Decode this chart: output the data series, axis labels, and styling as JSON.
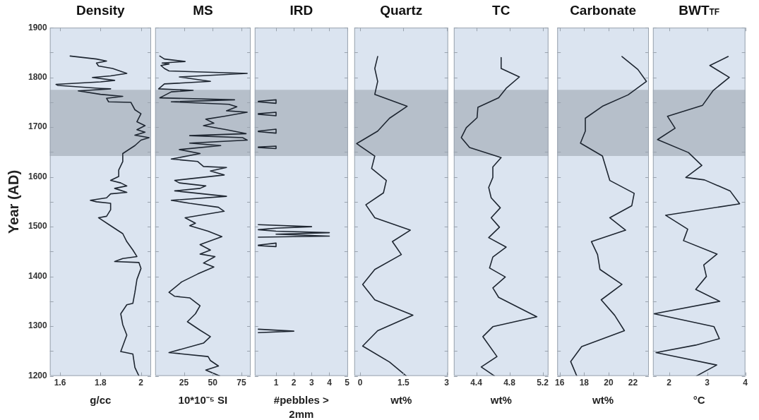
{
  "chart_data": [
    {
      "type": "line",
      "title": "Density",
      "xlabel": "g/cc",
      "ylabel": "Year (AD)",
      "orientation": "horizontal",
      "marker": "none",
      "xlim": [
        1.55,
        2.05
      ],
      "xticks": [
        1.6,
        1.8,
        2
      ],
      "ylim": [
        1200,
        1900
      ],
      "yticks": [
        1200,
        {
          "value": 1250,
          "label": null
        },
        1300,
        {
          "value": 1350,
          "label": null
        },
        1400,
        {
          "value": 1450,
          "label": null
        },
        1500,
        {
          "value": 1550,
          "label": null
        },
        1600,
        {
          "value": 1650,
          "label": null
        },
        1700,
        {
          "value": 1750,
          "label": null
        },
        1800,
        {
          "value": 1850,
          "label": null
        },
        1900
      ],
      "bands": [
        {
          "axis": "y",
          "from": 1642,
          "to": 1775,
          "color": "#b6bfca"
        }
      ],
      "series": [
        {
          "color": "#1e2631",
          "x": [
            1843,
            1837,
            1833,
            1829,
            1823,
            1818,
            1808,
            1803,
            1800,
            1794,
            1791,
            1786,
            1784,
            1778,
            1777,
            1773,
            1766,
            1762,
            1758,
            1751,
            1750,
            1735,
            1727,
            1711,
            1703,
            1695,
            1690,
            1684,
            1679,
            1674,
            1663,
            1647,
            1631,
            1614,
            1601,
            1593,
            1588,
            1582,
            1577,
            1569,
            1566,
            1558,
            1553,
            1550,
            1547,
            1534,
            1521,
            1518,
            1502,
            1486,
            1470,
            1453,
            1440,
            1436,
            1430,
            1428,
            1416,
            1394,
            1368,
            1346,
            1343,
            1325,
            1303,
            1282,
            1260,
            1249,
            1244,
            1217,
            1200
          ],
          "values": [
            1.65,
            1.78,
            1.83,
            1.78,
            1.79,
            1.86,
            1.93,
            1.85,
            1.76,
            1.87,
            1.8,
            1.58,
            1.59,
            1.8,
            1.85,
            1.69,
            1.8,
            1.91,
            1.83,
            1.84,
            1.95,
            1.97,
            2.0,
            1.98,
            2.02,
            1.98,
            2.02,
            1.97,
            2.04,
            2.0,
            1.97,
            1.91,
            1.91,
            1.89,
            1.89,
            1.85,
            1.9,
            1.93,
            1.87,
            1.93,
            1.85,
            1.83,
            1.75,
            1.78,
            1.85,
            1.85,
            1.83,
            1.79,
            1.85,
            1.91,
            1.93,
            1.96,
            1.98,
            1.91,
            1.87,
            1.99,
            2.0,
            1.98,
            1.97,
            1.96,
            1.93,
            1.9,
            1.91,
            1.93,
            1.91,
            1.9,
            1.96,
            1.97,
            1.99
          ]
        }
      ]
    },
    {
      "type": "line",
      "title": "MS",
      "xlabel": "10*10⁻⁵ SI",
      "orientation": "horizontal",
      "marker": "none",
      "tick_labels": "x",
      "xlim": [
        0,
        83
      ],
      "xticks": [
        25,
        50,
        75
      ],
      "ylim": [
        1200,
        1900
      ],
      "yticks": [
        1200,
        1250,
        1300,
        1350,
        1400,
        1450,
        1500,
        1550,
        1600,
        1650,
        1700,
        1750,
        1800,
        1850,
        1900
      ],
      "bands": [
        {
          "axis": "y",
          "from": 1642,
          "to": 1775,
          "color": "#b6bfca"
        }
      ],
      "series": [
        {
          "color": "#1e2631",
          "x": [
            1843,
            1837,
            1832,
            1829,
            1827,
            1824,
            1818,
            1813,
            1808,
            1801,
            1792,
            1787,
            1777,
            1774,
            1771,
            1759,
            1755,
            1751,
            1746,
            1741,
            1733,
            1730,
            1722,
            1716,
            1708,
            1703,
            1695,
            1687,
            1683,
            1679,
            1674,
            1668,
            1663,
            1655,
            1647,
            1636,
            1631,
            1621,
            1619,
            1612,
            1604,
            1593,
            1588,
            1582,
            1577,
            1572,
            1561,
            1553,
            1547,
            1539,
            1531,
            1518,
            1507,
            1502,
            1491,
            1480,
            1464,
            1453,
            1445,
            1440,
            1427,
            1419,
            1405,
            1389,
            1368,
            1360,
            1357,
            1341,
            1325,
            1309,
            1292,
            1279,
            1266,
            1247,
            1239,
            1231,
            1220,
            1212,
            1200
          ],
          "values": [
            4,
            8,
            26,
            6,
            12,
            5,
            8,
            12,
            80,
            21,
            48,
            8,
            3,
            33,
            14,
            4,
            69,
            14,
            64,
            71,
            62,
            80,
            60,
            44,
            51,
            42,
            62,
            79,
            30,
            76,
            80,
            30,
            57,
            21,
            39,
            14,
            37,
            42,
            62,
            48,
            60,
            17,
            21,
            44,
            39,
            17,
            62,
            14,
            30,
            55,
            60,
            26,
            35,
            30,
            46,
            58,
            39,
            48,
            39,
            52,
            42,
            51,
            37,
            23,
            12,
            17,
            30,
            39,
            35,
            28,
            39,
            48,
            42,
            12,
            46,
            48,
            55,
            44,
            56
          ]
        }
      ]
    },
    {
      "type": "line",
      "title": "IRD",
      "xlabel": "#pebbles > 2mm",
      "orientation": "horizontal",
      "marker": "none",
      "tick_labels": "x",
      "xlim": [
        -0.2,
        5.05
      ],
      "xticks": [
        1,
        2,
        3,
        4,
        5
      ],
      "ylim": [
        1200,
        1900
      ],
      "yticks": [
        1200,
        1250,
        1300,
        1350,
        1400,
        1450,
        1500,
        1550,
        1600,
        1650,
        1700,
        1750,
        1800,
        1850,
        1900
      ],
      "bands": [
        {
          "axis": "y",
          "from": 1642,
          "to": 1775,
          "color": "#b6bfca"
        }
      ],
      "series": [
        {
          "color": "#1e2631",
          "x": [
            1752,
            1755,
            1748,
            1751,
            1740,
            1727,
            1730,
            1723,
            1726,
            1710,
            1692,
            1696,
            1688,
            1691,
            1675,
            1660,
            1662,
            1657,
            1659,
            1550,
            1504,
            1500,
            1497,
            1494,
            1491,
            1488,
            1485,
            1481,
            1479,
            1475,
            1463,
            1467,
            1460,
            1462,
            1380,
            1294,
            1290,
            1287
          ],
          "values": [
            0,
            1,
            1,
            0,
            null,
            0,
            1,
            1,
            0,
            null,
            0,
            1,
            1,
            0,
            null,
            0,
            1,
            1,
            0,
            null,
            0,
            3,
            1,
            0,
            1,
            4,
            1,
            4,
            0,
            null,
            0,
            1,
            1,
            0,
            null,
            0,
            2,
            0
          ]
        }
      ]
    },
    {
      "type": "line",
      "title": "Quartz",
      "xlabel": "wt%",
      "orientation": "horizontal",
      "marker": "none",
      "tick_labels": "x",
      "xlim": [
        -0.2,
        3.05
      ],
      "xticks": [
        0,
        1.5,
        3
      ],
      "ylim": [
        1200,
        1900
      ],
      "yticks": [
        1200,
        1250,
        1300,
        1350,
        1400,
        1450,
        1500,
        1550,
        1600,
        1650,
        1700,
        1750,
        1800,
        1850,
        1900
      ],
      "bands": [
        {
          "axis": "y",
          "from": 1642,
          "to": 1775,
          "color": "#b6bfca"
        }
      ],
      "series": [
        {
          "color": "#1e2631",
          "x": [
            1842,
            1818,
            1792,
            1766,
            1742,
            1718,
            1692,
            1667,
            1642,
            1617,
            1593,
            1568,
            1544,
            1518,
            1493,
            1470,
            1444,
            1414,
            1384,
            1353,
            1322,
            1291,
            1260,
            1228,
            1200
          ],
          "values": [
            0.61,
            0.51,
            0.61,
            0.51,
            1.63,
            1.02,
            0.61,
            -0.12,
            0.51,
            0.4,
            0.91,
            0.81,
            0.2,
            0.51,
            1.74,
            1.12,
            1.43,
            0.51,
            0.09,
            0.51,
            1.83,
            0.61,
            0.09,
            1.02,
            1.6
          ]
        }
      ]
    },
    {
      "type": "line",
      "title": "TC",
      "xlabel": "wt%",
      "orientation": "horizontal",
      "marker": "none",
      "tick_labels": "x",
      "xlim": [
        4.13,
        5.27
      ],
      "xticks": [
        4.4,
        4.8,
        5.2
      ],
      "ylim": [
        1200,
        1900
      ],
      "yticks": [
        1200,
        1250,
        1300,
        1350,
        1400,
        1450,
        1500,
        1550,
        1600,
        1650,
        1700,
        1750,
        1800,
        1850,
        1900
      ],
      "bands": [
        {
          "axis": "y",
          "from": 1642,
          "to": 1775,
          "color": "#b6bfca"
        }
      ],
      "series": [
        {
          "color": "#1e2631",
          "x": [
            1840,
            1818,
            1801,
            1778,
            1759,
            1740,
            1719,
            1699,
            1679,
            1659,
            1639,
            1620,
            1599,
            1579,
            1558,
            1538,
            1518,
            1499,
            1478,
            1459,
            1439,
            1417,
            1399,
            1377,
            1358,
            1319,
            1299,
            1279,
            1239,
            1218,
            1200
          ],
          "values": [
            4.7,
            4.7,
            4.92,
            4.76,
            4.67,
            4.42,
            4.41,
            4.28,
            4.22,
            4.32,
            4.7,
            4.6,
            4.6,
            4.55,
            4.58,
            4.69,
            4.58,
            4.68,
            4.55,
            4.76,
            4.6,
            4.56,
            4.75,
            4.6,
            4.67,
            5.13,
            4.6,
            4.48,
            4.65,
            4.46,
            4.62
          ]
        }
      ]
    },
    {
      "type": "line",
      "title": "Carbonate",
      "xlabel": "wt%",
      "orientation": "horizontal",
      "marker": "none",
      "tick_labels": "x",
      "xlim": [
        15.8,
        23.3
      ],
      "xticks": [
        16,
        18,
        20,
        22
      ],
      "ylim": [
        1200,
        1900
      ],
      "yticks": [
        1200,
        1250,
        1300,
        1350,
        1400,
        1450,
        1500,
        1550,
        1600,
        1650,
        1700,
        1750,
        1800,
        1850,
        1900
      ],
      "bands": [
        {
          "axis": "y",
          "from": 1642,
          "to": 1775,
          "color": "#b6bfca"
        }
      ],
      "series": [
        {
          "color": "#1e2631",
          "x": [
            1842,
            1816,
            1792,
            1765,
            1742,
            1718,
            1692,
            1668,
            1642,
            1593,
            1567,
            1542,
            1518,
            1493,
            1470,
            1444,
            1414,
            1384,
            1353,
            1322,
            1291,
            1259,
            1229,
            1200
          ],
          "values": [
            21.1,
            22.4,
            23.1,
            21.6,
            19.5,
            18.1,
            18.1,
            17.7,
            19.5,
            20.1,
            22.1,
            21.9,
            20.1,
            21.4,
            18.6,
            19.1,
            19.3,
            21.1,
            19.4,
            20.5,
            21.3,
            17.8,
            16.9,
            17.4
          ]
        }
      ]
    },
    {
      "type": "line",
      "title": "BWT$_{TF}$",
      "xlabel": "°C",
      "orientation": "horizontal",
      "marker": "none",
      "tick_labels": "x",
      "xlim": [
        1.58,
        4
      ],
      "xticks": [
        2,
        3,
        4
      ],
      "ylim": [
        1200,
        1900
      ],
      "yticks": [
        1200,
        1250,
        1300,
        1350,
        1400,
        1450,
        1500,
        1550,
        1600,
        1650,
        1700,
        1750,
        1800,
        1850,
        1900
      ],
      "bands": [
        {
          "axis": "y",
          "from": 1642,
          "to": 1775,
          "color": "#b6bfca"
        }
      ],
      "series": [
        {
          "color": "#1e2631",
          "x": [
            1842,
            1824,
            1800,
            1774,
            1744,
            1722,
            1698,
            1675,
            1649,
            1623,
            1599,
            1594,
            1572,
            1546,
            1523,
            1495,
            1472,
            1445,
            1423,
            1400,
            1374,
            1350,
            1325,
            1299,
            1275,
            1262,
            1247,
            1222,
            1200
          ],
          "values": [
            3.55,
            3.07,
            3.58,
            3.16,
            2.88,
            1.96,
            2.16,
            1.7,
            2.51,
            2.86,
            2.44,
            2.93,
            3.6,
            3.85,
            1.91,
            2.49,
            2.38,
            3.26,
            2.91,
            2.98,
            2.7,
            3.33,
            1.61,
            3.18,
            3.32,
            2.7,
            1.66,
            3.25,
            2.72
          ]
        }
      ]
    }
  ]
}
